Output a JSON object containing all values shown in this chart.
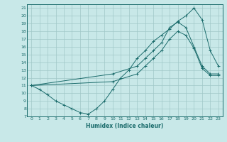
{
  "xlabel": "Humidex (Indice chaleur)",
  "bg_color": "#c8e8e8",
  "grid_color": "#a0c8c8",
  "line_color": "#1a6b6b",
  "xlim": [
    -0.5,
    23.5
  ],
  "ylim": [
    7,
    21.5
  ],
  "xticks": [
    0,
    1,
    2,
    3,
    4,
    5,
    6,
    7,
    8,
    9,
    10,
    11,
    12,
    13,
    14,
    15,
    16,
    17,
    18,
    19,
    20,
    21,
    22,
    23
  ],
  "yticks": [
    7,
    8,
    9,
    10,
    11,
    12,
    13,
    14,
    15,
    16,
    17,
    18,
    19,
    20,
    21
  ],
  "line1_x": [
    0,
    1,
    2,
    3,
    4,
    5,
    6,
    7,
    8,
    9,
    10,
    11,
    12,
    13,
    14,
    15,
    16,
    17,
    18,
    19,
    20,
    21,
    22,
    23
  ],
  "line1_y": [
    11,
    10.5,
    9.8,
    9.0,
    8.5,
    8.0,
    7.5,
    7.3,
    8.0,
    9.0,
    10.5,
    12.0,
    13.0,
    14.5,
    15.5,
    16.7,
    17.5,
    18.3,
    19.3,
    20.0,
    21.0,
    19.5,
    15.5,
    13.5
  ],
  "line2_x": [
    0,
    10,
    13,
    14,
    15,
    16,
    17,
    18,
    19,
    20,
    21,
    22,
    23
  ],
  "line2_y": [
    11,
    12.5,
    13.5,
    14.5,
    15.5,
    16.5,
    18.5,
    19.2,
    18.5,
    16.0,
    13.5,
    12.5,
    12.5
  ],
  "line3_x": [
    0,
    10,
    13,
    14,
    15,
    16,
    17,
    18,
    19,
    20,
    21,
    22,
    23
  ],
  "line3_y": [
    11,
    11.5,
    12.5,
    13.5,
    14.5,
    15.5,
    17.0,
    18.0,
    17.5,
    15.8,
    13.2,
    12.3,
    12.3
  ]
}
